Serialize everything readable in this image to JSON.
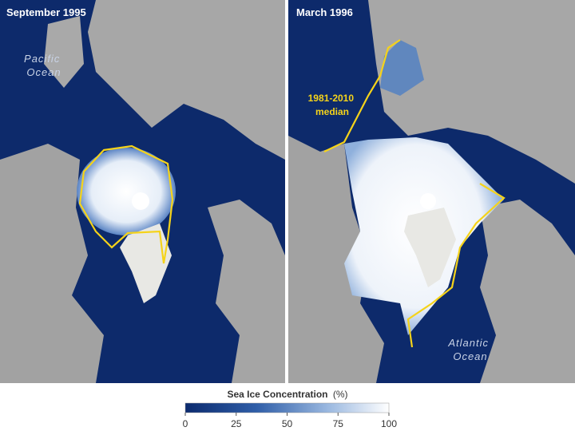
{
  "panels": [
    {
      "title": "September 1995",
      "labels": [
        {
          "lines": [
            "Pacific",
            "Ocean"
          ]
        }
      ]
    },
    {
      "title": "March 1996",
      "labels": [
        {
          "lines": [
            "1981-2010",
            "median"
          ]
        },
        {
          "lines": [
            "Atlantic",
            "Ocean"
          ]
        }
      ]
    }
  ],
  "colorbar": {
    "title": "Sea Ice Concentration",
    "unit": "(%)",
    "range": [
      0,
      100
    ],
    "ticks": [
      0,
      25,
      50,
      75,
      100
    ]
  }
}
